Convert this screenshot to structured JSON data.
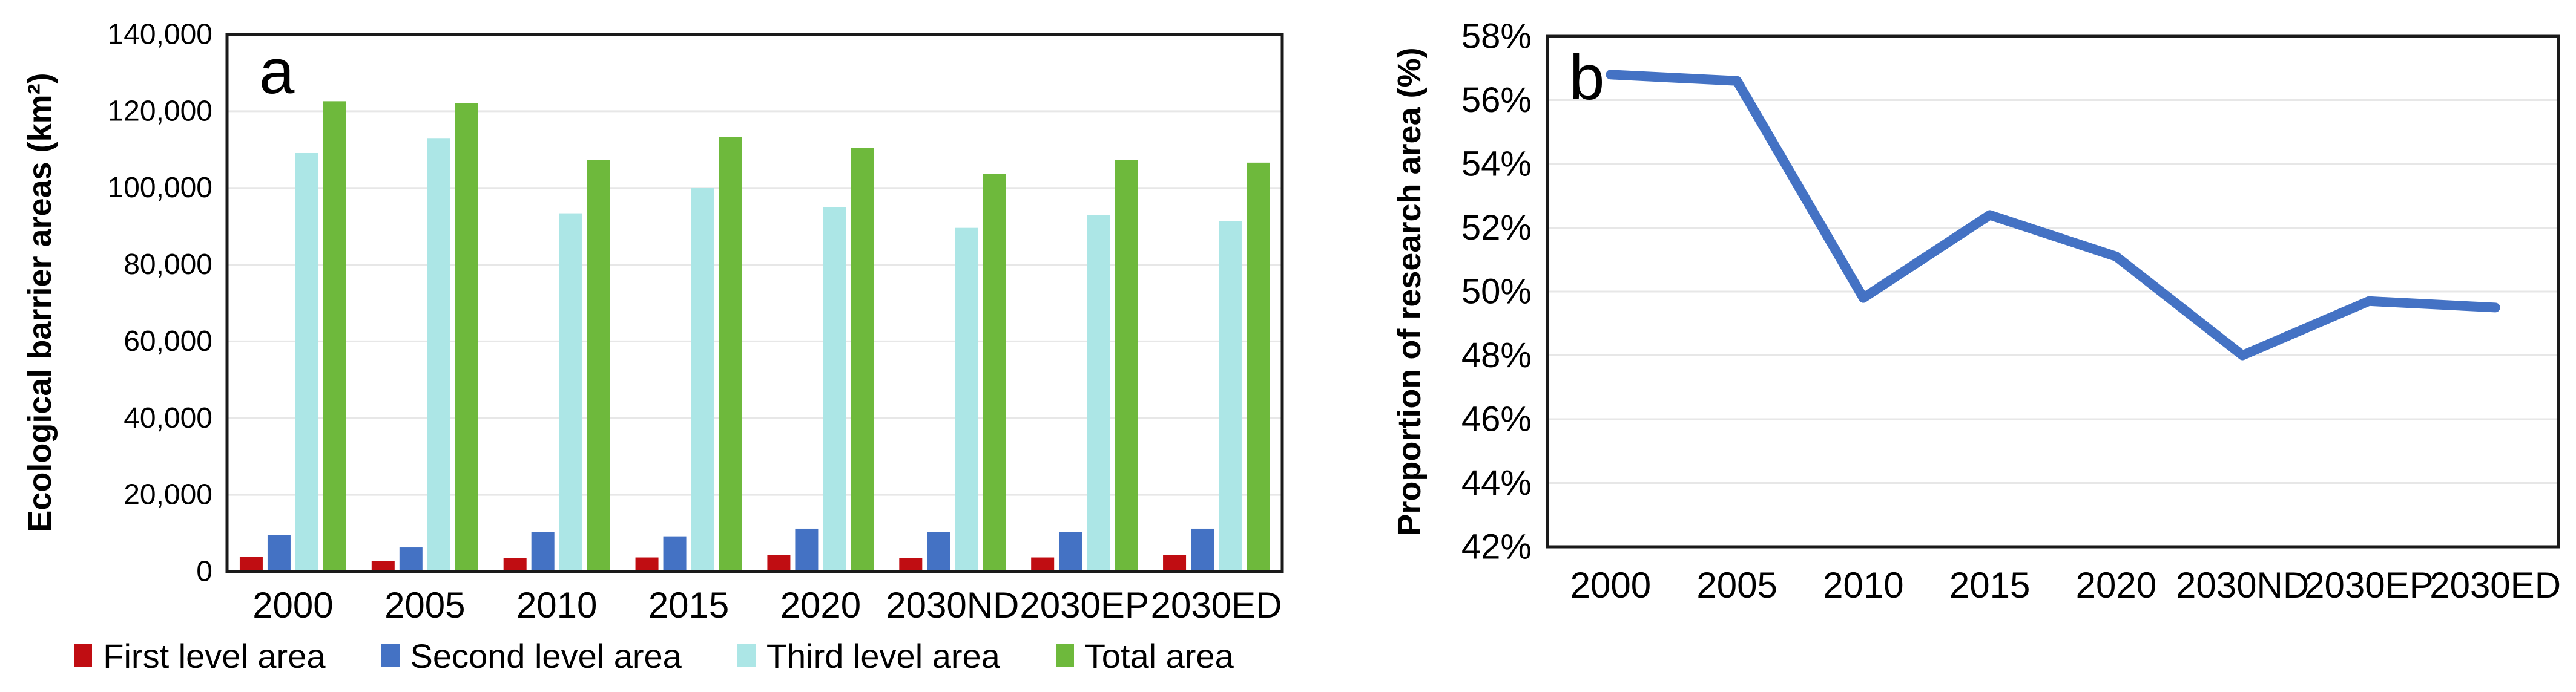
{
  "panels": [
    {
      "letter": "a",
      "ylabel": "Ecological barrier areas (km²)"
    },
    {
      "letter": "b",
      "ylabel": "Proportion of research area (%)"
    }
  ],
  "colors": {
    "first_level": "#C00D12",
    "second_level": "#4472C4",
    "third_level": "#ACE6E6",
    "total": "#6EB93C",
    "line": "#4472C4",
    "gridline": "#E7E7E7",
    "axis": "#1A1A1A"
  },
  "chart_data": [
    {
      "type": "bar",
      "title": "",
      "xlabel": "",
      "ylabel": "Ecological barrier areas (km²)",
      "categories": [
        "2000",
        "2005",
        "2010",
        "2015",
        "2020",
        "2030ND",
        "2030EP",
        "2030ED"
      ],
      "series": [
        {
          "name": "First level area",
          "color": "#C00D12",
          "values": [
            3800,
            2800,
            3600,
            3700,
            4300,
            3600,
            3700,
            4300
          ]
        },
        {
          "name": "Second level area",
          "color": "#4472C4",
          "values": [
            9500,
            6300,
            10400,
            9200,
            11200,
            10400,
            10400,
            11200
          ]
        },
        {
          "name": "Third level area",
          "color": "#ACE6E6",
          "values": [
            109100,
            113000,
            93400,
            100100,
            95000,
            89600,
            93000,
            91300
          ]
        },
        {
          "name": "Total area",
          "color": "#6EB93C",
          "values": [
            122600,
            122100,
            107300,
            113200,
            110400,
            103700,
            107300,
            106600
          ]
        }
      ],
      "ylim": [
        0,
        140000
      ],
      "ytick_step": 20000,
      "ytick_labels": [
        "0",
        "20,000",
        "40,000",
        "60,000",
        "80,000",
        "100,000",
        "120,000",
        "140,000"
      ],
      "grid": true,
      "legend_position": "bottom"
    },
    {
      "type": "line",
      "title": "",
      "xlabel": "",
      "ylabel": "Proportion of research area (%)",
      "categories": [
        "2000",
        "2005",
        "2010",
        "2015",
        "2020",
        "2030ND",
        "2030EP",
        "2030ED"
      ],
      "series": [
        {
          "name": "Proportion of research area",
          "color": "#4472C4",
          "values": [
            56.8,
            56.6,
            49.8,
            52.4,
            51.1,
            48.0,
            49.7,
            49.5
          ]
        }
      ],
      "ylim": [
        42,
        58
      ],
      "ytick_step": 2,
      "ytick_labels": [
        "42%",
        "44%",
        "46%",
        "48%",
        "50%",
        "52%",
        "54%",
        "56%",
        "58%"
      ],
      "grid": true,
      "legend_position": "none"
    }
  ]
}
